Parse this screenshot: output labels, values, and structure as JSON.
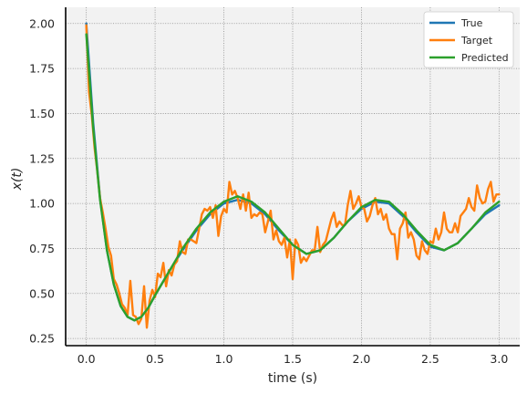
{
  "chart_data": {
    "type": "line",
    "xlabel": "time (s)",
    "ylabel": "x(t)",
    "xlim": [
      -0.15,
      3.15
    ],
    "ylim": [
      0.21,
      2.09
    ],
    "xticks": [
      0.0,
      0.5,
      1.0,
      1.5,
      2.0,
      2.5,
      3.0
    ],
    "xtick_labels": [
      "0.0",
      "0.5",
      "1.0",
      "1.5",
      "2.0",
      "2.5",
      "3.0"
    ],
    "yticks": [
      0.25,
      0.5,
      0.75,
      1.0,
      1.25,
      1.5,
      1.75,
      2.0
    ],
    "ytick_labels": [
      "0.25",
      "0.50",
      "0.75",
      "1.00",
      "1.25",
      "1.50",
      "1.75",
      "2.00"
    ],
    "grid": true,
    "legend_position": "top-right",
    "series": [
      {
        "name": "True",
        "color": "#1f77b4",
        "x": [
          0.0,
          0.05,
          0.1,
          0.15,
          0.2,
          0.25,
          0.3,
          0.35,
          0.4,
          0.45,
          0.5,
          0.6,
          0.7,
          0.8,
          0.9,
          1.0,
          1.1,
          1.2,
          1.3,
          1.4,
          1.5,
          1.6,
          1.7,
          1.8,
          1.9,
          2.0,
          2.1,
          2.2,
          2.3,
          2.4,
          2.5,
          2.6,
          2.7,
          2.8,
          2.9,
          3.0
        ],
        "values": [
          2.0,
          1.45,
          1.03,
          0.74,
          0.55,
          0.43,
          0.37,
          0.35,
          0.37,
          0.42,
          0.49,
          0.62,
          0.74,
          0.85,
          0.94,
          1.0,
          1.02,
          1.0,
          0.94,
          0.85,
          0.77,
          0.72,
          0.74,
          0.81,
          0.9,
          0.97,
          1.01,
          1.0,
          0.93,
          0.84,
          0.76,
          0.74,
          0.78,
          0.86,
          0.94,
          0.99
        ]
      },
      {
        "name": "Target",
        "color": "#ff7f0e",
        "x": [
          0.0,
          0.02,
          0.04,
          0.06,
          0.08,
          0.1,
          0.12,
          0.14,
          0.16,
          0.18,
          0.2,
          0.22,
          0.24,
          0.26,
          0.28,
          0.3,
          0.32,
          0.34,
          0.36,
          0.38,
          0.4,
          0.42,
          0.44,
          0.46,
          0.48,
          0.5,
          0.52,
          0.54,
          0.56,
          0.58,
          0.6,
          0.62,
          0.64,
          0.66,
          0.68,
          0.7,
          0.72,
          0.74,
          0.76,
          0.78,
          0.8,
          0.82,
          0.84,
          0.86,
          0.88,
          0.9,
          0.92,
          0.94,
          0.96,
          0.98,
          1.0,
          1.02,
          1.04,
          1.06,
          1.08,
          1.1,
          1.12,
          1.14,
          1.16,
          1.18,
          1.2,
          1.22,
          1.24,
          1.26,
          1.28,
          1.3,
          1.32,
          1.34,
          1.36,
          1.38,
          1.4,
          1.42,
          1.44,
          1.46,
          1.48,
          1.5,
          1.52,
          1.54,
          1.56,
          1.58,
          1.6,
          1.62,
          1.64,
          1.66,
          1.68,
          1.7,
          1.72,
          1.74,
          1.76,
          1.78,
          1.8,
          1.82,
          1.84,
          1.86,
          1.88,
          1.9,
          1.92,
          1.94,
          1.96,
          1.98,
          2.0,
          2.02,
          2.04,
          2.06,
          2.08,
          2.1,
          2.12,
          2.14,
          2.16,
          2.18,
          2.2,
          2.22,
          2.24,
          2.26,
          2.28,
          2.3,
          2.32,
          2.34,
          2.36,
          2.38,
          2.4,
          2.42,
          2.44,
          2.46,
          2.48,
          2.5,
          2.52,
          2.54,
          2.56,
          2.58,
          2.6,
          2.62,
          2.64,
          2.66,
          2.68,
          2.7,
          2.72,
          2.74,
          2.76,
          2.78,
          2.8,
          2.82,
          2.84,
          2.86,
          2.88,
          2.9,
          2.92,
          2.94,
          2.96,
          2.98,
          3.0
        ],
        "values": [
          1.99,
          1.62,
          1.49,
          1.31,
          1.18,
          1.03,
          0.95,
          0.86,
          0.76,
          0.71,
          0.58,
          0.55,
          0.5,
          0.44,
          0.42,
          0.38,
          0.57,
          0.38,
          0.37,
          0.33,
          0.36,
          0.54,
          0.31,
          0.46,
          0.52,
          0.48,
          0.61,
          0.59,
          0.67,
          0.54,
          0.63,
          0.6,
          0.66,
          0.68,
          0.79,
          0.73,
          0.72,
          0.8,
          0.8,
          0.79,
          0.78,
          0.86,
          0.94,
          0.97,
          0.96,
          0.98,
          0.92,
          0.99,
          0.82,
          0.93,
          0.97,
          0.95,
          1.12,
          1.05,
          1.07,
          1.03,
          0.97,
          1.05,
          0.96,
          1.06,
          0.92,
          0.94,
          0.93,
          0.95,
          0.94,
          0.84,
          0.9,
          0.96,
          0.8,
          0.85,
          0.79,
          0.77,
          0.81,
          0.7,
          0.8,
          0.58,
          0.8,
          0.77,
          0.67,
          0.7,
          0.68,
          0.71,
          0.74,
          0.74,
          0.87,
          0.73,
          0.77,
          0.79,
          0.85,
          0.91,
          0.95,
          0.87,
          0.9,
          0.88,
          0.88,
          0.99,
          1.07,
          0.97,
          1.0,
          1.04,
          0.98,
          0.97,
          0.9,
          0.93,
          0.99,
          1.03,
          0.94,
          0.97,
          0.91,
          0.94,
          0.86,
          0.83,
          0.83,
          0.69,
          0.86,
          0.89,
          0.95,
          0.81,
          0.84,
          0.8,
          0.71,
          0.69,
          0.79,
          0.74,
          0.72,
          0.79,
          0.78,
          0.86,
          0.8,
          0.84,
          0.95,
          0.86,
          0.84,
          0.84,
          0.89,
          0.84,
          0.93,
          0.95,
          0.97,
          1.03,
          0.98,
          0.96,
          1.1,
          1.03,
          1.0,
          1.01,
          1.08,
          1.12,
          1.01,
          1.05,
          1.05
        ]
      },
      {
        "name": "Predicted",
        "color": "#2ca02c",
        "x": [
          0.0,
          0.05,
          0.1,
          0.15,
          0.2,
          0.25,
          0.3,
          0.35,
          0.4,
          0.45,
          0.5,
          0.6,
          0.7,
          0.8,
          0.9,
          1.0,
          1.1,
          1.2,
          1.3,
          1.4,
          1.5,
          1.6,
          1.7,
          1.8,
          1.9,
          2.0,
          2.1,
          2.2,
          2.3,
          2.4,
          2.5,
          2.6,
          2.7,
          2.8,
          2.9,
          3.0
        ],
        "values": [
          1.94,
          1.42,
          1.02,
          0.74,
          0.55,
          0.43,
          0.37,
          0.35,
          0.37,
          0.42,
          0.49,
          0.62,
          0.75,
          0.86,
          0.95,
          1.01,
          1.04,
          1.01,
          0.95,
          0.86,
          0.77,
          0.72,
          0.74,
          0.81,
          0.9,
          0.98,
          1.02,
          1.01,
          0.94,
          0.85,
          0.77,
          0.74,
          0.78,
          0.86,
          0.95,
          1.01
        ]
      }
    ]
  }
}
